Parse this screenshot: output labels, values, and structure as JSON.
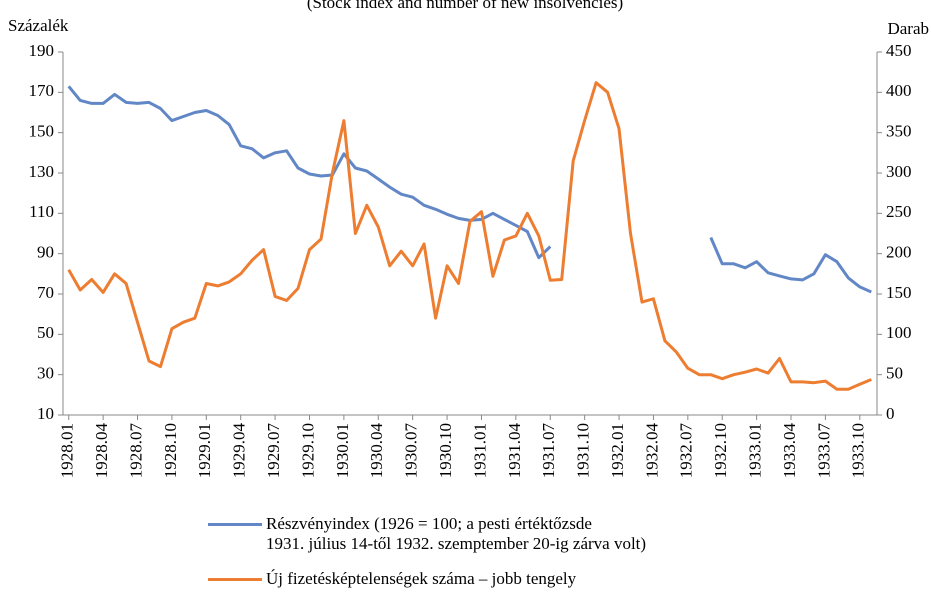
{
  "chart_data": {
    "type": "line",
    "subtitle": "(Stock index and number of new insolvencies)",
    "ylabel": "Százalék",
    "y2label": "Darab",
    "categories": [
      "1928.01",
      null,
      null,
      "1928.04",
      null,
      null,
      "1928.07",
      null,
      null,
      "1928.10",
      null,
      null,
      "1929.01",
      null,
      null,
      "1929.04",
      null,
      null,
      "1929.07",
      null,
      null,
      "1929.10",
      null,
      null,
      "1930.01",
      null,
      null,
      "1930.04",
      null,
      null,
      "1930.07",
      null,
      null,
      "1930.10",
      null,
      null,
      "1931.01",
      null,
      null,
      "1931.04",
      null,
      null,
      "1931.07",
      null,
      null,
      "1931.10",
      null,
      null,
      "1932.01",
      null,
      null,
      "1932.04",
      null,
      null,
      "1932.07",
      null,
      null,
      "1932.10",
      null,
      null,
      "1933.01",
      null,
      null,
      "1933.04",
      null,
      null,
      "1933.07",
      null,
      null,
      "1933.10",
      null
    ],
    "series": [
      {
        "name": "Részvényindex (1926 = 100; a pesti értéktőzsde\n1931. július 14-től 1932. szemptember 20-ig zárva volt)",
        "color": "#6287c6",
        "values": [
          173,
          166,
          164.5,
          164.5,
          169,
          165,
          164.5,
          165,
          162,
          156,
          158,
          160,
          161,
          158.5,
          154,
          143.5,
          142,
          137.5,
          140,
          141,
          132.5,
          129.5,
          128.5,
          129,
          139.5,
          132.5,
          131,
          127,
          123,
          119.5,
          118,
          114,
          112,
          109.5,
          107.5,
          106.5,
          107,
          110,
          107,
          104,
          101,
          88,
          93.5,
          null,
          null,
          null,
          null,
          null,
          null,
          null,
          null,
          null,
          null,
          null,
          null,
          null,
          98,
          85,
          85,
          83,
          86,
          80.5,
          79,
          77.5,
          77,
          80,
          89.5,
          86,
          78,
          73.5,
          71
        ]
      },
      {
        "name": "Új fizetésképtelenségek száma – jobb tengely",
        "color": "#ed7d31",
        "axis": "y2",
        "values": [
          180,
          155,
          168,
          152,
          175,
          163,
          115,
          67,
          60,
          107,
          115,
          120,
          163,
          160,
          165,
          175,
          192,
          205,
          147,
          142,
          157,
          205,
          218,
          300,
          365,
          225,
          260,
          233,
          185,
          203,
          185,
          212,
          120,
          185,
          163,
          240,
          252,
          172,
          217,
          222,
          250,
          222,
          167,
          168,
          315,
          365,
          412,
          400,
          355,
          225,
          140,
          144,
          92,
          78,
          58,
          50,
          50,
          45,
          50,
          53,
          57,
          52,
          70,
          41,
          41,
          40,
          42,
          32,
          32,
          38,
          44
        ]
      }
    ],
    "ylim": [
      10,
      190
    ],
    "yticks": [
      10,
      30,
      50,
      70,
      90,
      110,
      130,
      150,
      170,
      190
    ],
    "y2lim": [
      0,
      450
    ],
    "y2ticks": [
      0,
      50,
      100,
      150,
      200,
      250,
      300,
      350,
      400,
      450
    ]
  }
}
